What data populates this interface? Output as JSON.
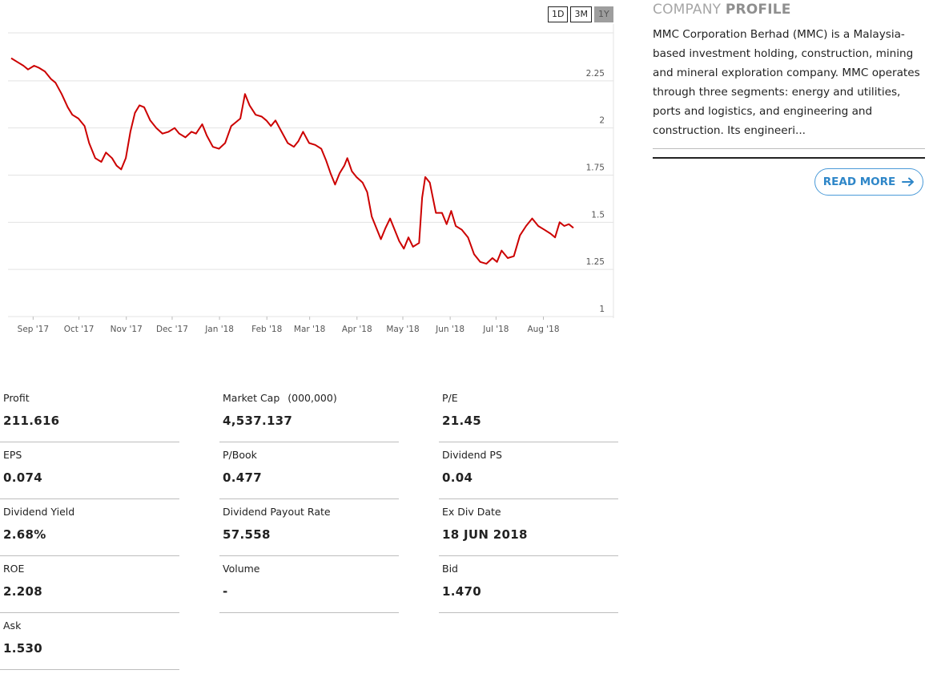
{
  "range_buttons": [
    {
      "label": "1D",
      "active": false
    },
    {
      "label": "3M",
      "active": false
    },
    {
      "label": "1Y",
      "active": true
    }
  ],
  "chart_data": {
    "type": "line",
    "line_color": "#cc0000",
    "ylim": [
      1,
      2.5
    ],
    "y_ticks": [
      {
        "value": 2.25,
        "label": "2.25"
      },
      {
        "value": 2,
        "label": "2"
      },
      {
        "value": 1.75,
        "label": "1.75"
      },
      {
        "value": 1.5,
        "label": "1.5"
      },
      {
        "value": 1.25,
        "label": "1.25"
      },
      {
        "value": 1,
        "label": "1"
      }
    ],
    "x_ticks": [
      "Sep '17",
      "Oct '17",
      "Nov '17",
      "Dec '17",
      "Jan '18",
      "Feb '18",
      "Mar '18",
      "Apr '18",
      "May '18",
      "Jun '18",
      "Jul '18",
      "Aug '18"
    ],
    "x_range": [
      "2017-08-25",
      "2018-08-28"
    ],
    "series": [
      {
        "values": [
          [
            "2017-08-25",
            2.37
          ],
          [
            "2017-08-29",
            2.35
          ],
          [
            "2017-09-02",
            2.33
          ],
          [
            "2017-09-05",
            2.31
          ],
          [
            "2017-09-09",
            2.33
          ],
          [
            "2017-09-12",
            2.32
          ],
          [
            "2017-09-16",
            2.3
          ],
          [
            "2017-09-20",
            2.26
          ],
          [
            "2017-09-23",
            2.24
          ],
          [
            "2017-09-27",
            2.18
          ],
          [
            "2017-10-01",
            2.11
          ],
          [
            "2017-10-04",
            2.07
          ],
          [
            "2017-10-08",
            2.05
          ],
          [
            "2017-10-12",
            2.01
          ],
          [
            "2017-10-15",
            1.92
          ],
          [
            "2017-10-19",
            1.84
          ],
          [
            "2017-10-23",
            1.82
          ],
          [
            "2017-10-26",
            1.87
          ],
          [
            "2017-10-30",
            1.84
          ],
          [
            "2017-11-02",
            1.8
          ],
          [
            "2017-11-05",
            1.78
          ],
          [
            "2017-11-08",
            1.84
          ],
          [
            "2017-11-11",
            1.98
          ],
          [
            "2017-11-14",
            2.08
          ],
          [
            "2017-11-17",
            2.12
          ],
          [
            "2017-11-20",
            2.11
          ],
          [
            "2017-11-24",
            2.04
          ],
          [
            "2017-11-28",
            2.0
          ],
          [
            "2017-12-02",
            1.97
          ],
          [
            "2017-12-06",
            1.98
          ],
          [
            "2017-12-10",
            2.0
          ],
          [
            "2017-12-13",
            1.97
          ],
          [
            "2017-12-17",
            1.95
          ],
          [
            "2017-12-21",
            1.98
          ],
          [
            "2017-12-24",
            1.97
          ],
          [
            "2017-12-28",
            2.02
          ],
          [
            "2017-12-31",
            1.96
          ],
          [
            "2018-01-04",
            1.9
          ],
          [
            "2018-01-08",
            1.89
          ],
          [
            "2018-01-12",
            1.92
          ],
          [
            "2018-01-16",
            2.01
          ],
          [
            "2018-01-19",
            2.03
          ],
          [
            "2018-01-22",
            2.05
          ],
          [
            "2018-01-25",
            2.18
          ],
          [
            "2018-01-28",
            2.12
          ],
          [
            "2018-02-01",
            2.07
          ],
          [
            "2018-02-05",
            2.06
          ],
          [
            "2018-02-08",
            2.04
          ],
          [
            "2018-02-11",
            2.01
          ],
          [
            "2018-02-14",
            2.04
          ],
          [
            "2018-02-18",
            1.98
          ],
          [
            "2018-02-22",
            1.92
          ],
          [
            "2018-02-26",
            1.9
          ],
          [
            "2018-03-01",
            1.93
          ],
          [
            "2018-03-04",
            1.98
          ],
          [
            "2018-03-08",
            1.92
          ],
          [
            "2018-03-12",
            1.91
          ],
          [
            "2018-03-16",
            1.89
          ],
          [
            "2018-03-19",
            1.83
          ],
          [
            "2018-03-22",
            1.76
          ],
          [
            "2018-03-25",
            1.7
          ],
          [
            "2018-03-28",
            1.76
          ],
          [
            "2018-03-31",
            1.8
          ],
          [
            "2018-04-02",
            1.84
          ],
          [
            "2018-04-05",
            1.77
          ],
          [
            "2018-04-08",
            1.74
          ],
          [
            "2018-04-12",
            1.71
          ],
          [
            "2018-04-15",
            1.66
          ],
          [
            "2018-04-18",
            1.53
          ],
          [
            "2018-04-21",
            1.47
          ],
          [
            "2018-04-24",
            1.41
          ],
          [
            "2018-04-27",
            1.47
          ],
          [
            "2018-04-30",
            1.52
          ],
          [
            "2018-05-03",
            1.46
          ],
          [
            "2018-05-06",
            1.4
          ],
          [
            "2018-05-09",
            1.36
          ],
          [
            "2018-05-12",
            1.42
          ],
          [
            "2018-05-15",
            1.37
          ],
          [
            "2018-05-19",
            1.39
          ],
          [
            "2018-05-21",
            1.63
          ],
          [
            "2018-05-23",
            1.74
          ],
          [
            "2018-05-26",
            1.71
          ],
          [
            "2018-05-30",
            1.55
          ],
          [
            "2018-06-03",
            1.55
          ],
          [
            "2018-06-06",
            1.49
          ],
          [
            "2018-06-09",
            1.56
          ],
          [
            "2018-06-12",
            1.48
          ],
          [
            "2018-06-16",
            1.46
          ],
          [
            "2018-06-20",
            1.42
          ],
          [
            "2018-06-24",
            1.33
          ],
          [
            "2018-06-28",
            1.29
          ],
          [
            "2018-07-02",
            1.28
          ],
          [
            "2018-07-06",
            1.31
          ],
          [
            "2018-07-09",
            1.29
          ],
          [
            "2018-07-12",
            1.35
          ],
          [
            "2018-07-16",
            1.31
          ],
          [
            "2018-07-20",
            1.32
          ],
          [
            "2018-07-24",
            1.43
          ],
          [
            "2018-07-28",
            1.48
          ],
          [
            "2018-08-01",
            1.52
          ],
          [
            "2018-08-05",
            1.48
          ],
          [
            "2018-08-09",
            1.46
          ],
          [
            "2018-08-13",
            1.44
          ],
          [
            "2018-08-16",
            1.42
          ],
          [
            "2018-08-19",
            1.5
          ],
          [
            "2018-08-22",
            1.48
          ],
          [
            "2018-08-25",
            1.49
          ],
          [
            "2018-08-28",
            1.47
          ]
        ]
      }
    ]
  },
  "profile": {
    "title_light": "COMPANY",
    "title_bold": "PROFILE",
    "text": "MMC Corporation Berhad (MMC) is a Malaysia-based investment holding, construction, mining and mineral exploration company. MMC operates through three segments: energy and utilities, ports and logistics, and engineering and construction. Its engineeri...",
    "read_more": "READ MORE",
    "arrow_icon": "arrow-right-icon",
    "accent_color": "#2e86c8"
  },
  "stats": {
    "profit": {
      "label": "Profit",
      "value": "211.616"
    },
    "market_cap": {
      "label": "Market Cap",
      "unit": "(000,000)",
      "value": "4,537.137"
    },
    "pe": {
      "label": "P/E",
      "value": "21.45"
    },
    "eps": {
      "label": "EPS",
      "value": "0.074"
    },
    "pbook": {
      "label": "P/Book",
      "value": "0.477"
    },
    "dividend_ps": {
      "label": "Dividend PS",
      "value": "0.04"
    },
    "dividend_yield": {
      "label": "Dividend Yield",
      "value": "2.68%"
    },
    "dividend_payout": {
      "label": "Dividend Payout Rate",
      "value": "57.558"
    },
    "ex_div_date": {
      "label": "Ex Div Date",
      "value": "18 JUN 2018"
    },
    "roe": {
      "label": "ROE",
      "value": "2.208"
    },
    "volume": {
      "label": "Volume",
      "value": "-"
    },
    "bid": {
      "label": "Bid",
      "value": "1.470"
    },
    "ask": {
      "label": "Ask",
      "value": "1.530"
    }
  }
}
